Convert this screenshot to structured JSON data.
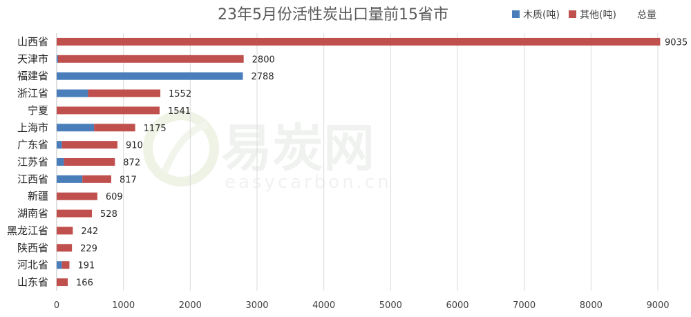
{
  "watermark": {
    "brand": "易炭网",
    "domain": "easycarbon.cn"
  },
  "legend": {
    "total_label": "总量"
  },
  "chart_data": {
    "type": "bar",
    "orientation": "horizontal",
    "stacked": true,
    "title": "23年5月份活性炭出口量前15省市",
    "categories": [
      "山西省",
      "天津市",
      "福建省",
      "浙江省",
      "宁夏",
      "上海市",
      "广东省",
      "江苏省",
      "江西省",
      "新疆",
      "湖南省",
      "黑龙江省",
      "陕西省",
      "河北省",
      "山东省"
    ],
    "series": [
      {
        "name": "木质(吨)",
        "color": "#4a7ebb",
        "values": [
          0,
          20,
          2788,
          470,
          0,
          560,
          80,
          110,
          385,
          0,
          0,
          0,
          0,
          80,
          0
        ]
      },
      {
        "name": "其他(吨)",
        "color": "#c0504d",
        "values": [
          9035,
          2780,
          0,
          1082,
          1541,
          615,
          830,
          762,
          432,
          609,
          528,
          242,
          229,
          111,
          166
        ]
      }
    ],
    "totals": [
      9035,
      2800,
      2788,
      1552,
      1541,
      1175,
      910,
      872,
      817,
      609,
      528,
      242,
      229,
      191,
      166
    ],
    "xlim": [
      0,
      9000
    ],
    "xticks": [
      0,
      1000,
      2000,
      3000,
      4000,
      5000,
      6000,
      7000,
      8000,
      9000
    ],
    "grid": "vertical",
    "legend_position": "top-right"
  }
}
